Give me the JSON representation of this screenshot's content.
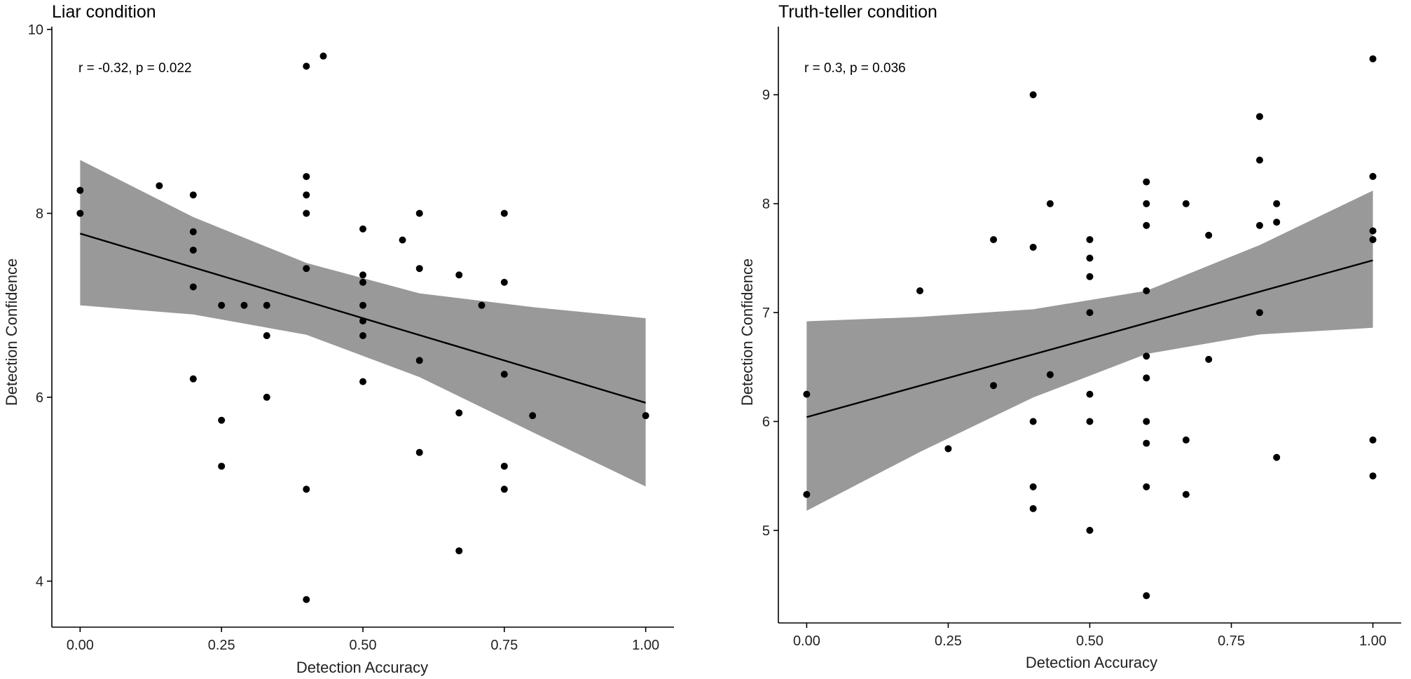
{
  "colors": {
    "point": "#000000",
    "band": "#999999",
    "line": "#000000",
    "background": "#ffffff"
  },
  "chart_data": [
    {
      "type": "scatter",
      "title": "Liar condition",
      "annotation": "r = -0.32, p = 0.022",
      "xlabel": "Detection Accuracy",
      "ylabel": "Detection Confidence",
      "xlim": [
        -0.05,
        1.05
      ],
      "ylim": [
        3.5,
        10.0
      ],
      "xticks": [
        0.0,
        0.25,
        0.5,
        0.75,
        1.0
      ],
      "xtick_labels": [
        "0.00",
        "0.25",
        "0.50",
        "0.75",
        "1.00"
      ],
      "yticks": [
        4,
        6,
        8,
        10
      ],
      "ytick_labels": [
        "4",
        "6",
        "8",
        "10"
      ],
      "regression": {
        "intercept": 7.78,
        "slope": -1.84
      },
      "ci_band": {
        "x": [
          0.0,
          0.2,
          0.4,
          0.6,
          0.8,
          1.0
        ],
        "lower": [
          7.0,
          6.9,
          6.68,
          6.22,
          5.62,
          5.03
        ],
        "upper": [
          8.58,
          7.96,
          7.46,
          7.13,
          6.98,
          6.86
        ]
      },
      "points": [
        {
          "x": 0.0,
          "y": 8.25
        },
        {
          "x": 0.0,
          "y": 8.0
        },
        {
          "x": 0.14,
          "y": 8.3
        },
        {
          "x": 0.2,
          "y": 8.2
        },
        {
          "x": 0.2,
          "y": 7.8
        },
        {
          "x": 0.2,
          "y": 7.6
        },
        {
          "x": 0.2,
          "y": 7.2
        },
        {
          "x": 0.2,
          "y": 6.2
        },
        {
          "x": 0.25,
          "y": 7.0
        },
        {
          "x": 0.25,
          "y": 5.75
        },
        {
          "x": 0.25,
          "y": 5.25
        },
        {
          "x": 0.29,
          "y": 7.0
        },
        {
          "x": 0.33,
          "y": 7.0
        },
        {
          "x": 0.33,
          "y": 6.67
        },
        {
          "x": 0.33,
          "y": 6.0
        },
        {
          "x": 0.4,
          "y": 9.6
        },
        {
          "x": 0.4,
          "y": 8.4
        },
        {
          "x": 0.4,
          "y": 8.2
        },
        {
          "x": 0.4,
          "y": 8.0
        },
        {
          "x": 0.4,
          "y": 7.4
        },
        {
          "x": 0.4,
          "y": 5.0
        },
        {
          "x": 0.4,
          "y": 3.8
        },
        {
          "x": 0.43,
          "y": 9.71
        },
        {
          "x": 0.5,
          "y": 7.83
        },
        {
          "x": 0.5,
          "y": 7.33
        },
        {
          "x": 0.5,
          "y": 7.25
        },
        {
          "x": 0.5,
          "y": 7.0
        },
        {
          "x": 0.5,
          "y": 6.83
        },
        {
          "x": 0.5,
          "y": 6.67
        },
        {
          "x": 0.5,
          "y": 6.17
        },
        {
          "x": 0.57,
          "y": 7.71
        },
        {
          "x": 0.6,
          "y": 8.0
        },
        {
          "x": 0.6,
          "y": 7.4
        },
        {
          "x": 0.6,
          "y": 6.4
        },
        {
          "x": 0.6,
          "y": 5.4
        },
        {
          "x": 0.67,
          "y": 7.33
        },
        {
          "x": 0.67,
          "y": 5.83
        },
        {
          "x": 0.67,
          "y": 4.33
        },
        {
          "x": 0.71,
          "y": 7.0
        },
        {
          "x": 0.75,
          "y": 8.0
        },
        {
          "x": 0.75,
          "y": 7.25
        },
        {
          "x": 0.75,
          "y": 6.25
        },
        {
          "x": 0.75,
          "y": 5.25
        },
        {
          "x": 0.75,
          "y": 5.0
        },
        {
          "x": 0.8,
          "y": 5.8
        },
        {
          "x": 1.0,
          "y": 5.8
        }
      ]
    },
    {
      "type": "scatter",
      "title": "Truth-teller condition",
      "annotation": "r = 0.3, p = 0.036",
      "xlabel": "Detection Accuracy",
      "ylabel": "Detection Confidence",
      "xlim": [
        -0.05,
        1.05
      ],
      "ylim": [
        4.15,
        9.6
      ],
      "xticks": [
        0.0,
        0.25,
        0.5,
        0.75,
        1.0
      ],
      "xtick_labels": [
        "0.00",
        "0.25",
        "0.50",
        "0.75",
        "1.00"
      ],
      "yticks": [
        5,
        6,
        7,
        8,
        9
      ],
      "ytick_labels": [
        "5",
        "6",
        "7",
        "8",
        "9"
      ],
      "regression": {
        "intercept": 6.04,
        "slope": 1.44
      },
      "ci_band": {
        "x": [
          0.0,
          0.2,
          0.4,
          0.6,
          0.8,
          1.0
        ],
        "lower": [
          5.18,
          5.72,
          6.22,
          6.62,
          6.8,
          6.86
        ],
        "upper": [
          6.92,
          6.96,
          7.03,
          7.2,
          7.62,
          8.12
        ]
      },
      "points": [
        {
          "x": 0.0,
          "y": 6.25
        },
        {
          "x": 0.0,
          "y": 5.33
        },
        {
          "x": 0.2,
          "y": 7.2
        },
        {
          "x": 0.25,
          "y": 5.75
        },
        {
          "x": 0.33,
          "y": 7.67
        },
        {
          "x": 0.33,
          "y": 6.33
        },
        {
          "x": 0.4,
          "y": 9.0
        },
        {
          "x": 0.4,
          "y": 7.6
        },
        {
          "x": 0.4,
          "y": 6.0
        },
        {
          "x": 0.4,
          "y": 5.4
        },
        {
          "x": 0.4,
          "y": 5.2
        },
        {
          "x": 0.43,
          "y": 8.0
        },
        {
          "x": 0.43,
          "y": 6.43
        },
        {
          "x": 0.5,
          "y": 7.67
        },
        {
          "x": 0.5,
          "y": 7.5
        },
        {
          "x": 0.5,
          "y": 7.33
        },
        {
          "x": 0.5,
          "y": 7.0
        },
        {
          "x": 0.5,
          "y": 6.25
        },
        {
          "x": 0.5,
          "y": 6.0
        },
        {
          "x": 0.5,
          "y": 5.0
        },
        {
          "x": 0.6,
          "y": 8.2
        },
        {
          "x": 0.6,
          "y": 8.0
        },
        {
          "x": 0.6,
          "y": 7.8
        },
        {
          "x": 0.6,
          "y": 7.2
        },
        {
          "x": 0.6,
          "y": 6.6
        },
        {
          "x": 0.6,
          "y": 6.4
        },
        {
          "x": 0.6,
          "y": 6.0
        },
        {
          "x": 0.6,
          "y": 5.8
        },
        {
          "x": 0.6,
          "y": 5.4
        },
        {
          "x": 0.6,
          "y": 4.4
        },
        {
          "x": 0.67,
          "y": 8.0
        },
        {
          "x": 0.67,
          "y": 5.83
        },
        {
          "x": 0.67,
          "y": 5.33
        },
        {
          "x": 0.71,
          "y": 7.71
        },
        {
          "x": 0.71,
          "y": 6.57
        },
        {
          "x": 0.8,
          "y": 8.8
        },
        {
          "x": 0.8,
          "y": 8.4
        },
        {
          "x": 0.8,
          "y": 7.8
        },
        {
          "x": 0.8,
          "y": 7.0
        },
        {
          "x": 0.83,
          "y": 8.0
        },
        {
          "x": 0.83,
          "y": 7.83
        },
        {
          "x": 0.83,
          "y": 5.67
        },
        {
          "x": 1.0,
          "y": 9.33
        },
        {
          "x": 1.0,
          "y": 8.25
        },
        {
          "x": 1.0,
          "y": 7.75
        },
        {
          "x": 1.0,
          "y": 7.67
        },
        {
          "x": 1.0,
          "y": 5.83
        },
        {
          "x": 1.0,
          "y": 5.5
        }
      ]
    }
  ]
}
